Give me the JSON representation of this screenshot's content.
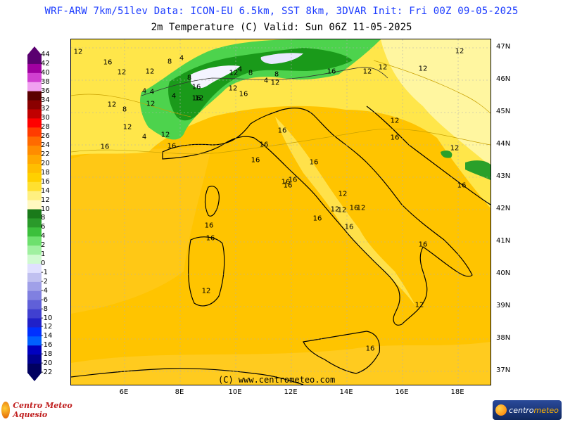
{
  "header": {
    "line1": "WRF-ARW 7km/51lev  Data: ICON-EU 6.5km, SST 8km, 3DVAR  Init: Fri 00Z 09-05-2025",
    "line2": "2m Temperature (C)  Valid: Sun 06Z 11-05-2025"
  },
  "colorbar": {
    "labels": [
      "44",
      "42",
      "40",
      "38",
      "36",
      "34",
      "32",
      "30",
      "28",
      "26",
      "24",
      "22",
      "20",
      "18",
      "16",
      "14",
      "12",
      "10",
      "8",
      "6",
      "4",
      "2",
      "1",
      "0",
      "-1",
      "-2",
      "-4",
      "-6",
      "-8",
      "-10",
      "-12",
      "-14",
      "-16",
      "-18",
      "-20",
      "-22"
    ],
    "colors": [
      "#5a0070",
      "#a000a0",
      "#d040d0",
      "#f0a0f0",
      "#5a0000",
      "#8a0000",
      "#c00000",
      "#ff0000",
      "#ff3c00",
      "#ff6a00",
      "#ff8c00",
      "#ffa800",
      "#ffbe00",
      "#ffd000",
      "#ffe030",
      "#fff080",
      "#fff8c0",
      "#1a7a1a",
      "#2a9a2a",
      "#3cc03c",
      "#6ee06e",
      "#a0f0a0",
      "#d0fad0",
      "#e0e0ff",
      "#c0c0f0",
      "#a0a0e8",
      "#8080e0",
      "#6060d8",
      "#4040d0",
      "#2020c8",
      "#0030ff",
      "#0060ff",
      "#0000c0",
      "#000090",
      "#000060"
    ]
  },
  "map": {
    "lat_labels": [
      "47N",
      "46N",
      "45N",
      "44N",
      "43N",
      "42N",
      "41N",
      "40N",
      "39N",
      "38N",
      "37N"
    ],
    "lon_labels": [
      "6E",
      "8E",
      "10E",
      "12E",
      "14E",
      "16E",
      "18E"
    ],
    "isotherm_labels": [
      {
        "t": "12"
      },
      {
        "t": "16"
      },
      {
        "t": "12"
      },
      {
        "t": "12"
      },
      {
        "t": "8"
      },
      {
        "t": "4"
      },
      {
        "t": "4"
      },
      {
        "t": "8"
      },
      {
        "t": "4"
      },
      {
        "t": "4"
      },
      {
        "t": "8"
      },
      {
        "t": "12"
      },
      {
        "t": "16"
      },
      {
        "t": "12"
      },
      {
        "t": "12"
      },
      {
        "t": "16"
      },
      {
        "t": "12"
      },
      {
        "t": "4"
      },
      {
        "t": "12"
      },
      {
        "t": "16"
      },
      {
        "t": "16"
      },
      {
        "t": "4"
      },
      {
        "t": "12"
      },
      {
        "t": "12"
      },
      {
        "t": "8"
      },
      {
        "t": "4"
      },
      {
        "t": "8"
      },
      {
        "t": "16"
      },
      {
        "t": "12"
      },
      {
        "t": "12"
      },
      {
        "t": "12"
      },
      {
        "t": "12"
      },
      {
        "t": "16"
      },
      {
        "t": "12"
      },
      {
        "t": "16"
      },
      {
        "t": "16"
      },
      {
        "t": "16"
      },
      {
        "t": "16"
      },
      {
        "t": "16"
      },
      {
        "t": "12"
      },
      {
        "t": "12"
      },
      {
        "t": "12"
      },
      {
        "t": "16"
      },
      {
        "t": "16"
      },
      {
        "t": "16"
      },
      {
        "t": "16"
      },
      {
        "t": "16"
      },
      {
        "t": "12"
      },
      {
        "t": "12"
      },
      {
        "t": "16"
      },
      {
        "t": "16"
      },
      {
        "t": "16"
      },
      {
        "t": "16"
      },
      {
        "t": "16"
      },
      {
        "t": "12"
      },
      {
        "t": "12"
      },
      {
        "t": "16"
      },
      {
        "t": "12"
      }
    ]
  },
  "footer": {
    "copyright": "(C) www.centrometeo.com",
    "logo_left": "Centro Meteo Aquesio",
    "logo_right_a": "centro",
    "logo_right_b": "meteo"
  }
}
